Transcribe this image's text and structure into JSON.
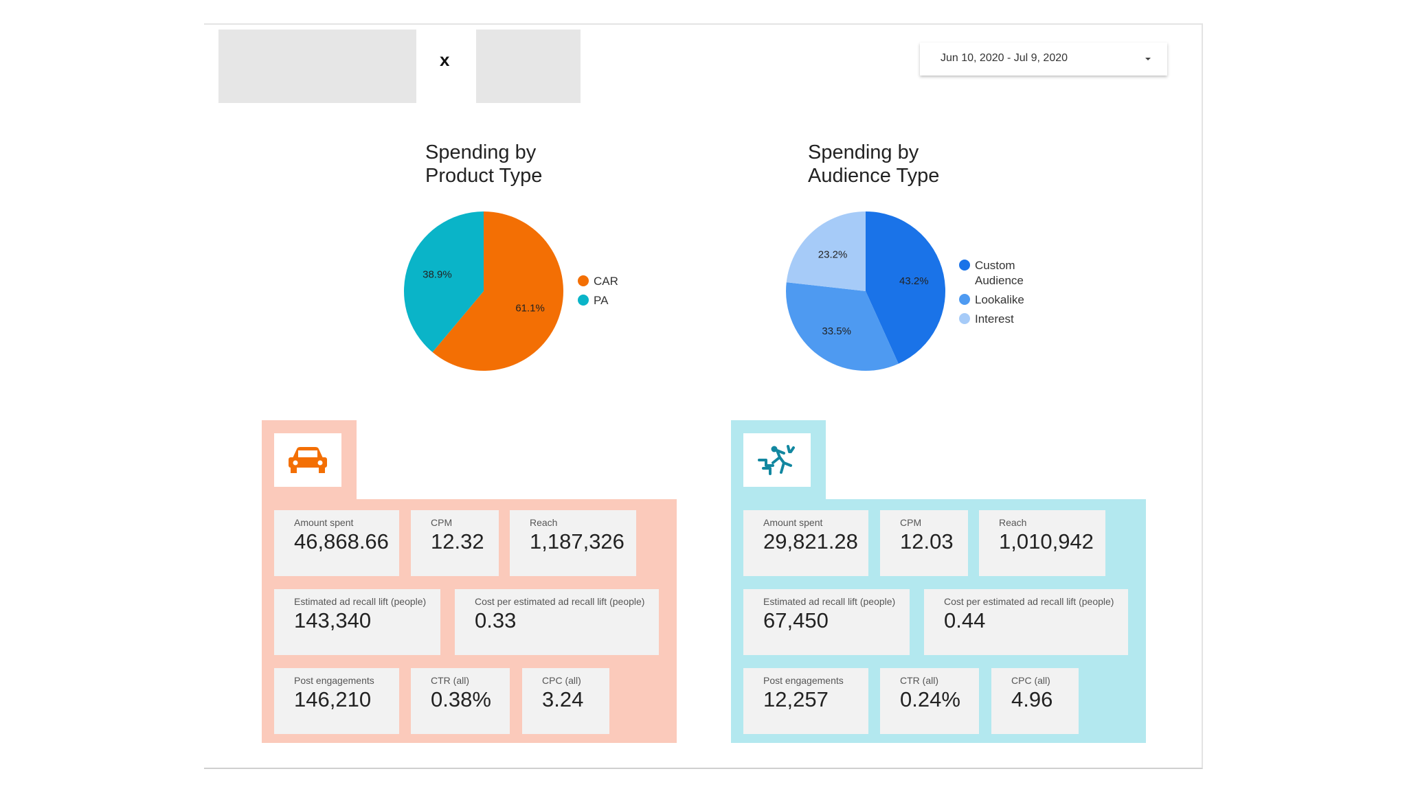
{
  "header": {
    "logo_left": "",
    "separator": "x",
    "logo_right": "",
    "date_range": "Jun 10, 2020 - Jul 9, 2020"
  },
  "chart_data": [
    {
      "type": "pie",
      "title": "Spending by\nProduct Type",
      "series": [
        {
          "name": "CAR",
          "value": 61.1,
          "label": "61.1%",
          "color": "#f36f04"
        },
        {
          "name": "PA",
          "value": 38.9,
          "label": "38.9%",
          "color": "#0ab4c8"
        }
      ],
      "legend": "right"
    },
    {
      "type": "pie",
      "title": "Spending by\nAudience Type",
      "series": [
        {
          "name": "Custom Audience",
          "legend_lines": [
            "Custom",
            "Audience"
          ],
          "value": 43.2,
          "label": "43.2%",
          "color": "#1a73e8"
        },
        {
          "name": "Lookalike",
          "legend_lines": [
            "Lookalike"
          ],
          "value": 33.5,
          "label": "33.5%",
          "color": "#4e9af1"
        },
        {
          "name": "Interest",
          "legend_lines": [
            "Interest"
          ],
          "value": 23.2,
          "label": "23.2%",
          "color": "#a6cbf8"
        }
      ],
      "legend": "right"
    }
  ],
  "panels": [
    {
      "icon": "car-icon",
      "bg_color": "#fbcabb",
      "metrics": {
        "amount_spent": {
          "label": "Amount spent",
          "value": "46,868.66"
        },
        "cpm": {
          "label": "CPM",
          "value": "12.32"
        },
        "reach": {
          "label": "Reach",
          "value": "1,187,326"
        },
        "recall_lift": {
          "label": "Estimated ad recall lift (people)",
          "value": "143,340"
        },
        "cost_recall": {
          "label": "Cost per estimated ad recall lift (people)",
          "value": "0.33"
        },
        "post_engagements": {
          "label": "Post engagements",
          "value": "146,210"
        },
        "ctr": {
          "label": "CTR (all)",
          "value": "0.38%"
        },
        "cpc": {
          "label": "CPC (all)",
          "value": "3.24"
        }
      }
    },
    {
      "icon": "falling-person-icon",
      "bg_color": "#b3e8ef",
      "metrics": {
        "amount_spent": {
          "label": "Amount spent",
          "value": "29,821.28"
        },
        "cpm": {
          "label": "CPM",
          "value": "12.03"
        },
        "reach": {
          "label": "Reach",
          "value": "1,010,942"
        },
        "recall_lift": {
          "label": "Estimated ad recall lift (people)",
          "value": "67,450"
        },
        "cost_recall": {
          "label": "Cost per estimated ad recall lift (people)",
          "value": "0.44"
        },
        "post_engagements": {
          "label": "Post engagements",
          "value": "12,257"
        },
        "ctr": {
          "label": "CTR (all)",
          "value": "0.24%"
        },
        "cpc": {
          "label": "CPC (all)",
          "value": "4.96"
        }
      }
    }
  ]
}
